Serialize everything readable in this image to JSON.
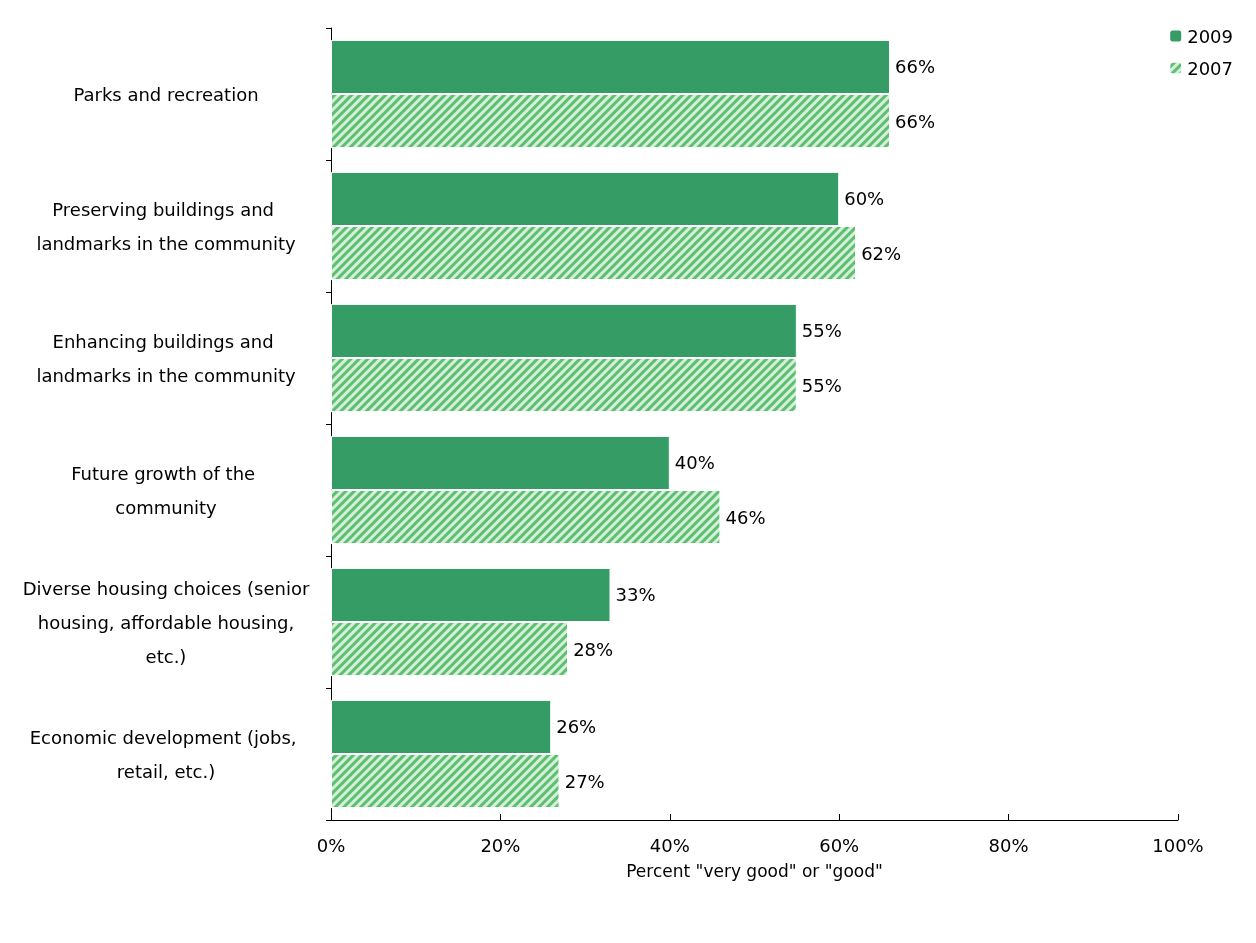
{
  "chart_data": {
    "type": "bar",
    "orientation": "horizontal",
    "xlabel": "Percent \"very good\" or \"good\"",
    "categories": [
      "Parks and recreation",
      "Preserving buildings and landmarks in the community",
      "Enhancing buildings and landmarks in the community",
      "Future growth of the community",
      "Diverse housing choices (senior housing, affordable housing, etc.)",
      "Economic development (jobs, retail, etc.)"
    ],
    "series": [
      {
        "name": "2009",
        "color": "#359c65",
        "values": [
          66,
          60,
          55,
          40,
          33,
          26
        ],
        "value_labels": [
          "66%",
          "60%",
          "55%",
          "40%",
          "33%",
          "26%"
        ]
      },
      {
        "name": "2007",
        "color": "#5cc070",
        "values": [
          66,
          62,
          55,
          46,
          28,
          27
        ],
        "value_labels": [
          "66%",
          "62%",
          "55%",
          "46%",
          "28%",
          "27%"
        ]
      }
    ],
    "xlim": [
      0,
      100
    ],
    "xticks": [
      {
        "value": 0,
        "label": "0%"
      },
      {
        "value": 20,
        "label": "20%"
      },
      {
        "value": 40,
        "label": "40%"
      },
      {
        "value": 60,
        "label": "60%"
      },
      {
        "value": 80,
        "label": "80%"
      },
      {
        "value": 100,
        "label": "100%"
      }
    ],
    "legend": "top right",
    "grid": false
  }
}
